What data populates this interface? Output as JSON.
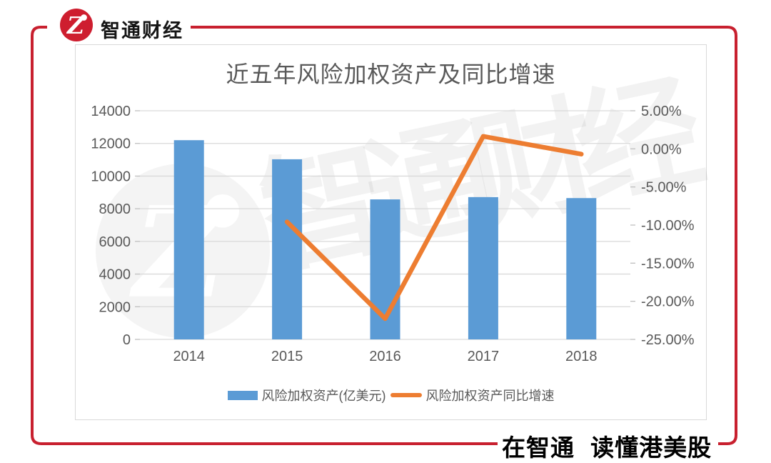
{
  "brand": {
    "name": "智通财经",
    "logo_letter": "Z",
    "red": "#C8202F"
  },
  "footer": {
    "slogan": "在智通 读懂港美股"
  },
  "watermark": {
    "text": "智通财经",
    "logo_letter": "Z"
  },
  "chart_data": {
    "type": "bar",
    "combo": "bar+line",
    "title": "近五年风险加权资产及同比增速",
    "categories": [
      "2014",
      "2015",
      "2016",
      "2017",
      "2018"
    ],
    "series": [
      {
        "name": "风险加权资产(亿美元)",
        "type": "bar",
        "axis": "left",
        "color": "#5B9BD5",
        "values": [
          12198,
          11029,
          8572,
          8713,
          8653
        ]
      },
      {
        "name": "风险加权资产同比增速",
        "type": "line",
        "axis": "right",
        "color": "#ED7D31",
        "values": [
          null,
          -9.58,
          -22.28,
          1.64,
          -0.69
        ]
      }
    ],
    "left_axis": {
      "min": 0,
      "max": 14000,
      "step": 2000,
      "tick_labels": [
        "0",
        "2000",
        "4000",
        "6000",
        "8000",
        "10000",
        "12000",
        "14000"
      ]
    },
    "right_axis": {
      "min": -25,
      "max": 5,
      "step": 5,
      "tick_labels": [
        "5.00%",
        "0.00%",
        "-5.00%",
        "-10.00%",
        "-15.00%",
        "-20.00%",
        "-25.00%"
      ]
    },
    "grid": true,
    "legend_position": "bottom",
    "text_color": "#595959",
    "grid_color": "#D9D9D9"
  }
}
